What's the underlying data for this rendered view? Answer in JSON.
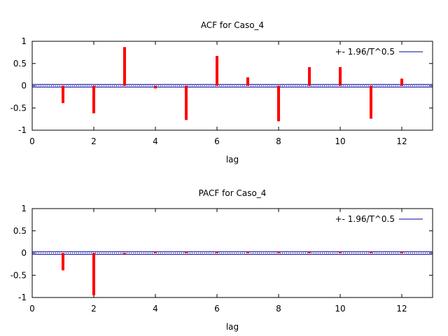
{
  "chart_data": [
    {
      "type": "bar",
      "title": "ACF for Caso_4",
      "xlabel": "lag",
      "ylabel": "",
      "xlim": [
        0,
        13
      ],
      "ylim": [
        -1,
        1
      ],
      "xticks": [
        "0",
        "2",
        "4",
        "6",
        "8",
        "10",
        "12"
      ],
      "yticks": [
        "1",
        "0.5",
        "0",
        "-0.5",
        "-1"
      ],
      "x": [
        1,
        2,
        3,
        4,
        5,
        6,
        7,
        8,
        9,
        10,
        11,
        12
      ],
      "values": [
        -0.39,
        -0.62,
        0.87,
        -0.06,
        -0.77,
        0.67,
        0.19,
        -0.8,
        0.42,
        0.42,
        -0.74,
        0.16
      ],
      "confidence_band": 0.03,
      "legend": "+- 1.96/T^0.5",
      "legend_position": "top-right",
      "colors": {
        "bars": "#ff0000",
        "band": "#0000a0"
      }
    },
    {
      "type": "bar",
      "title": "PACF for Caso_4",
      "xlabel": "lag",
      "ylabel": "",
      "xlim": [
        0,
        13
      ],
      "ylim": [
        -1,
        1
      ],
      "xticks": [
        "0",
        "2",
        "4",
        "6",
        "8",
        "10",
        "12"
      ],
      "yticks": [
        "1",
        "0.5",
        "0",
        "-0.5",
        "-1"
      ],
      "x": [
        1,
        2,
        3,
        4,
        5,
        6,
        7,
        8,
        9,
        10,
        11,
        12
      ],
      "values": [
        -0.39,
        -0.95,
        -0.03,
        0.0,
        0.0,
        0.0,
        0.0,
        0.01,
        0.0,
        0.0,
        0.0,
        0.0
      ],
      "confidence_band": 0.03,
      "legend": "+- 1.96/T^0.5",
      "legend_position": "top-right",
      "colors": {
        "bars": "#ff0000",
        "band": "#0000a0"
      }
    }
  ]
}
